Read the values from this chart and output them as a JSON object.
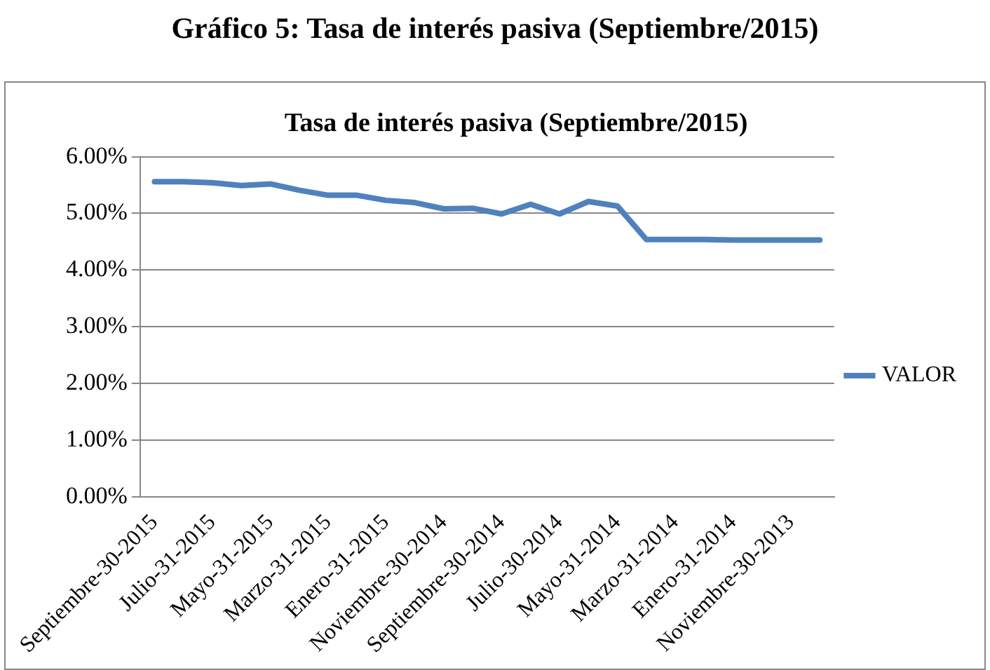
{
  "chart_data": {
    "type": "line",
    "title": "Gráfico 5: Tasa de interés pasiva (Septiembre/2015)",
    "subtitle": "Tasa de interés pasiva (Septiembre/2015)",
    "categories": [
      "Septiembre-30-2015",
      null,
      "Julio-31-2015",
      null,
      "Mayo-31-2015",
      null,
      "Marzo-31-2015",
      null,
      "Enero-31-2015",
      null,
      "Noviembre-30-2014",
      null,
      "Septiembre-30-2014",
      null,
      "Julio-30-2014",
      null,
      "Mayo-31-2014",
      null,
      "Marzo-31-2014",
      null,
      "Enero-31-2014",
      null,
      "Noviembre-30-2013",
      null
    ],
    "series": [
      {
        "name": "VALOR",
        "color": "#4f81bd",
        "values": [
          5.56,
          5.56,
          5.54,
          5.49,
          5.52,
          5.41,
          5.32,
          5.32,
          5.23,
          5.19,
          5.08,
          5.09,
          4.99,
          5.16,
          4.99,
          5.21,
          5.13,
          4.54,
          4.54,
          4.54,
          4.53,
          4.53,
          4.53,
          4.53
        ]
      }
    ],
    "ylim": [
      0,
      6
    ],
    "yticks": [
      {
        "value": 0,
        "label": "0.00%"
      },
      {
        "value": 1,
        "label": "1.00%"
      },
      {
        "value": 2,
        "label": "2.00%"
      },
      {
        "value": 3,
        "label": "3.00%"
      },
      {
        "value": 4,
        "label": "4.00%"
      },
      {
        "value": 5,
        "label": "5.00%"
      },
      {
        "value": 6,
        "label": "6.00%"
      }
    ],
    "grid": "y",
    "legend": "right",
    "marker": "none",
    "line_style": "solid"
  }
}
